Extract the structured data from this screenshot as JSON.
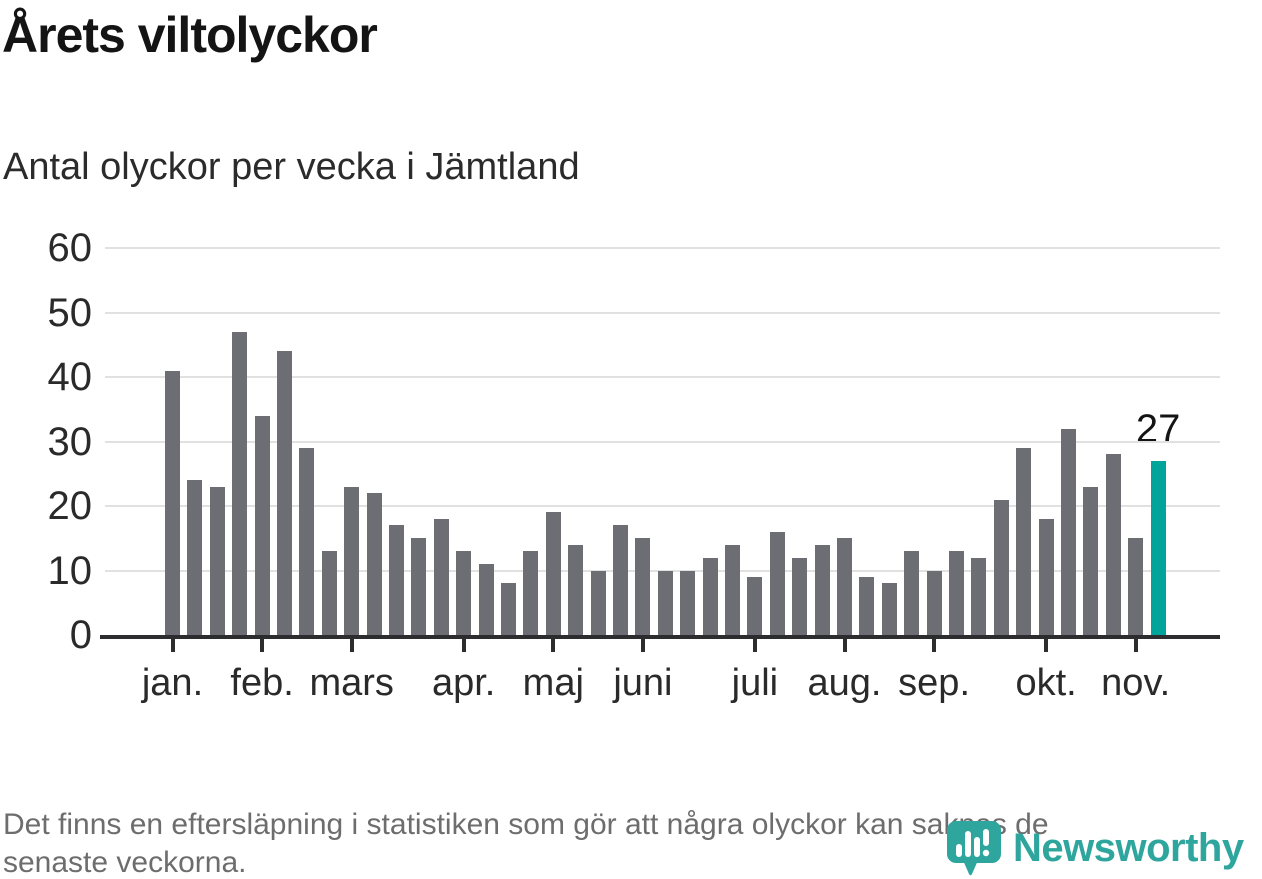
{
  "header": {
    "title": "Årets viltolyckor",
    "subtitle": "Antal olyckor per vecka i Jämtland"
  },
  "chart_data": {
    "type": "bar",
    "title": "Årets viltolyckor",
    "subtitle": "Antal olyckor per vecka i Jämtland",
    "x_range_weeks": [
      1,
      45
    ],
    "values": [
      41,
      24,
      23,
      47,
      34,
      44,
      29,
      13,
      23,
      22,
      17,
      15,
      18,
      13,
      11,
      8,
      13,
      19,
      14,
      10,
      17,
      15,
      10,
      10,
      12,
      14,
      9,
      16,
      12,
      14,
      15,
      9,
      8,
      13,
      10,
      13,
      12,
      21,
      29,
      18,
      32,
      23,
      28,
      15,
      27
    ],
    "highlight_index": 44,
    "annotation": {
      "text": "27"
    },
    "ylim": [
      0,
      60
    ],
    "y_ticks": [
      0,
      10,
      20,
      30,
      40,
      50,
      60
    ],
    "months": [
      {
        "label": "jan.",
        "week": 1
      },
      {
        "label": "feb.",
        "week": 5
      },
      {
        "label": "mars",
        "week": 9
      },
      {
        "label": "apr.",
        "week": 14
      },
      {
        "label": "maj",
        "week": 18
      },
      {
        "label": "juni",
        "week": 22
      },
      {
        "label": "juli",
        "week": 27
      },
      {
        "label": "aug.",
        "week": 31
      },
      {
        "label": "sep.",
        "week": 35
      },
      {
        "label": "okt.",
        "week": 40
      },
      {
        "label": "nov.",
        "week": 44
      }
    ],
    "grid": "horizontal",
    "legend": "none",
    "colors": {
      "bar": "#6d6d74",
      "highlight": "#00a49b",
      "grid": "#e1e1e1",
      "axis": "#2d2d30",
      "labels": "#2a2a2a"
    }
  },
  "footnote": {
    "lines": [
      "Det finns en eftersläpning i statistiken som gör att några olyckor kan saknas de",
      "senaste veckorna."
    ]
  },
  "logo": {
    "text": "Newsworthy",
    "color": "#2fa69d",
    "icon": "speech-bubble-bar-chart-icon"
  }
}
